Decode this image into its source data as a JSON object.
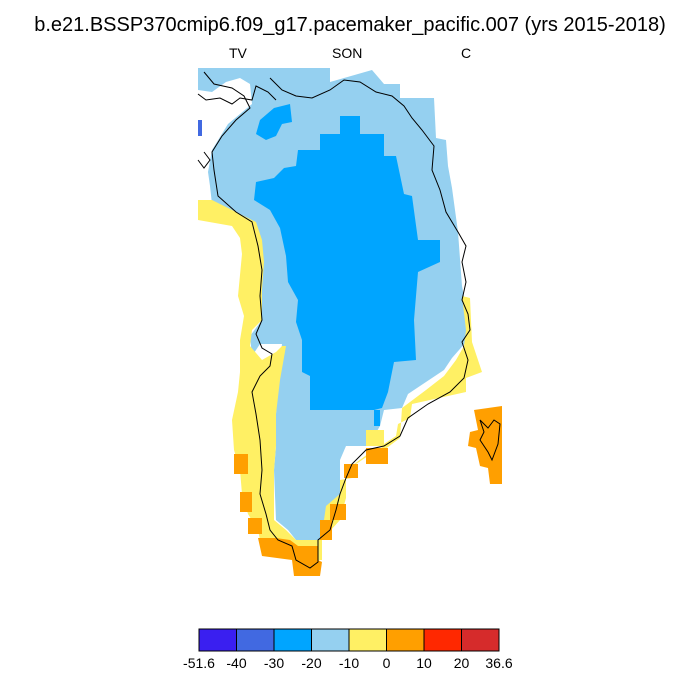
{
  "title": "b.e21.BSSP370cmip6.f09_g17.pacemaker_pacific.007 (yrs 2015-2018)",
  "subtitle_left": "TV",
  "subtitle_center": "SON",
  "subtitle_right": "C",
  "colorbar": {
    "colors": [
      "#3a1ff0",
      "#4169e1",
      "#00a5ff",
      "#95d0f0",
      "#fff064",
      "#ff9f00",
      "#ff2800",
      "#d62b2b"
    ],
    "labels": [
      "-51.6",
      "-40",
      "-30",
      "-20",
      "-10",
      "0",
      "10",
      "20",
      "36.6"
    ]
  },
  "chart_data": {
    "type": "heatmap",
    "region": "Greenland",
    "variable": "TV",
    "season": "SON",
    "units": "C",
    "range": [
      -51.6,
      36.6
    ],
    "levels": [
      -51.6,
      -40,
      -30,
      -20,
      -10,
      0,
      10,
      20,
      36.6
    ]
  }
}
